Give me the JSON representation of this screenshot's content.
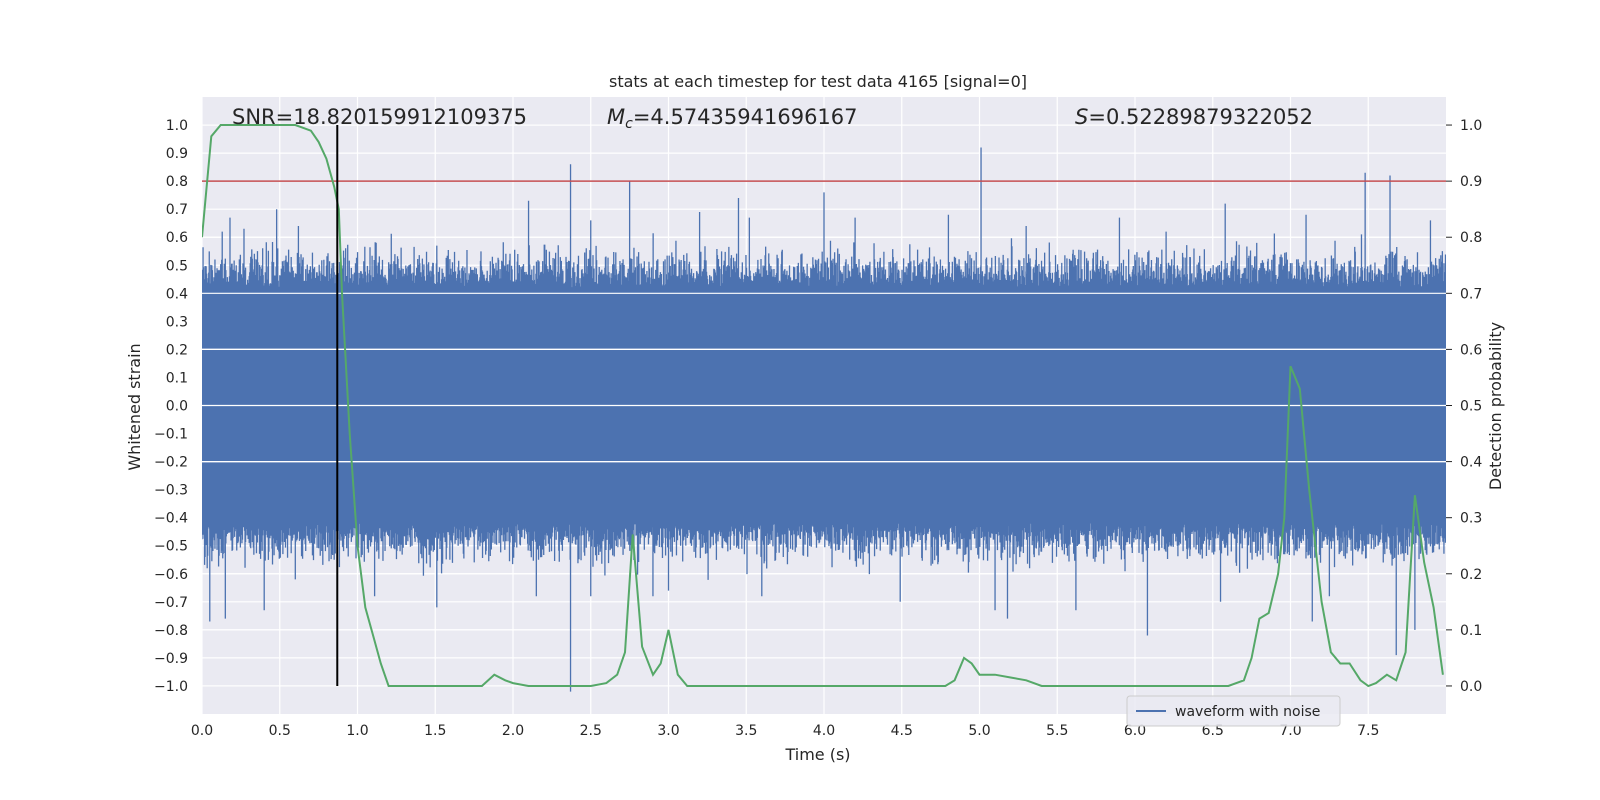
{
  "chart_data": {
    "type": "line",
    "title": "stats at each timestep for test data 4165 [signal=0]",
    "xlabel": "Time (s)",
    "ylabel": "Whitened strain",
    "y2label": "Detection probability",
    "xlim": [
      0.0,
      8.0
    ],
    "ylim": [
      -1.1,
      1.1
    ],
    "y2lim": [
      -0.05,
      1.05
    ],
    "x_ticks": [
      "0.0",
      "0.5",
      "1.0",
      "1.5",
      "2.0",
      "2.5",
      "3.0",
      "3.5",
      "4.0",
      "4.5",
      "5.0",
      "5.5",
      "6.0",
      "6.5",
      "7.0",
      "7.5"
    ],
    "y_ticks": [
      "1.0",
      "0.9",
      "0.8",
      "0.7",
      "0.6",
      "0.5",
      "0.4",
      "0.3",
      "0.2",
      "0.1",
      "0.0",
      "−0.1",
      "−0.2",
      "−0.3",
      "−0.4",
      "−0.5",
      "−0.6",
      "−0.7",
      "−0.8",
      "−0.9",
      "−1.0"
    ],
    "y2_ticks": [
      "1.0",
      "0.9",
      "0.8",
      "0.7",
      "0.6",
      "0.5",
      "0.4",
      "0.3",
      "0.2",
      "0.1",
      "0.0"
    ],
    "grid": true,
    "legend_placement": "lower-right",
    "annotations": {
      "snr": "SNR=18.820159912109375",
      "mc_symbol": "M",
      "mc_sub": "c",
      "mc_value": "=4.57435941696167",
      "s_symbol": "S",
      "s_value": "=0.52289879322052"
    },
    "threshold": {
      "y2": 0.9,
      "color": "#c44e52"
    },
    "vline": {
      "x": 0.87,
      "y_range": [
        -1.0,
        1.0
      ],
      "color": "#000000"
    },
    "series": [
      {
        "name": "waveform with noise",
        "color": "#4c72b0",
        "description_style": "dense noise",
        "envelope": {
          "core": 0.42,
          "typical": 0.55
        },
        "spikes_up": [
          [
            0.13,
            0.62
          ],
          [
            0.18,
            0.67
          ],
          [
            0.27,
            0.63
          ],
          [
            0.48,
            0.7
          ],
          [
            0.62,
            0.64
          ],
          [
            1.12,
            0.58
          ],
          [
            1.51,
            0.57
          ],
          [
            2.1,
            0.73
          ],
          [
            2.37,
            0.86
          ],
          [
            2.5,
            0.66
          ],
          [
            2.75,
            0.8
          ],
          [
            3.2,
            0.69
          ],
          [
            3.45,
            0.74
          ],
          [
            3.52,
            0.67
          ],
          [
            4.0,
            0.76
          ],
          [
            4.2,
            0.67
          ],
          [
            4.8,
            0.68
          ],
          [
            5.01,
            0.92
          ],
          [
            5.3,
            0.64
          ],
          [
            5.9,
            0.67
          ],
          [
            6.2,
            0.62
          ],
          [
            6.58,
            0.72
          ],
          [
            7.1,
            0.68
          ],
          [
            7.48,
            0.83
          ],
          [
            7.64,
            0.82
          ],
          [
            7.9,
            0.66
          ]
        ],
        "spikes_down": [
          [
            0.05,
            -0.77
          ],
          [
            0.15,
            -0.76
          ],
          [
            0.4,
            -0.73
          ],
          [
            0.6,
            -0.62
          ],
          [
            0.85,
            -0.55
          ],
          [
            1.11,
            -0.68
          ],
          [
            1.51,
            -0.72
          ],
          [
            2.15,
            -0.68
          ],
          [
            2.37,
            -1.02
          ],
          [
            2.5,
            -0.68
          ],
          [
            2.9,
            -0.68
          ],
          [
            3.0,
            -0.66
          ],
          [
            3.6,
            -0.68
          ],
          [
            4.49,
            -0.7
          ],
          [
            5.1,
            -0.73
          ],
          [
            5.18,
            -0.76
          ],
          [
            5.62,
            -0.73
          ],
          [
            6.08,
            -0.82
          ],
          [
            6.55,
            -0.7
          ],
          [
            7.14,
            -0.77
          ],
          [
            7.25,
            -0.68
          ],
          [
            7.68,
            -0.89
          ],
          [
            7.8,
            -0.8
          ]
        ]
      },
      {
        "name": "",
        "color": "#55a868",
        "axis": "y2",
        "x": [
          0.0,
          0.06,
          0.12,
          0.2,
          0.3,
          0.4,
          0.5,
          0.6,
          0.7,
          0.75,
          0.8,
          0.85,
          0.88,
          0.9,
          0.95,
          1.0,
          1.05,
          1.1,
          1.15,
          1.2,
          1.25,
          1.3,
          1.4,
          1.5,
          1.6,
          1.7,
          1.8,
          1.88,
          1.95,
          2.0,
          2.1,
          2.2,
          2.3,
          2.4,
          2.5,
          2.6,
          2.67,
          2.72,
          2.77,
          2.83,
          2.9,
          2.95,
          3.0,
          3.06,
          3.12,
          3.2,
          3.4,
          3.6,
          3.8,
          4.0,
          4.2,
          4.4,
          4.6,
          4.7,
          4.78,
          4.84,
          4.9,
          4.95,
          5.0,
          5.05,
          5.1,
          5.2,
          5.3,
          5.4,
          5.6,
          5.8,
          6.0,
          6.2,
          6.4,
          6.6,
          6.7,
          6.75,
          6.8,
          6.86,
          6.92,
          6.96,
          7.0,
          7.06,
          7.12,
          7.2,
          7.26,
          7.32,
          7.38,
          7.45,
          7.5,
          7.55,
          7.62,
          7.68,
          7.74,
          7.8,
          7.86,
          7.92,
          7.98
        ],
        "y": [
          0.8,
          0.98,
          1.0,
          1.0,
          1.0,
          1.0,
          1.0,
          1.0,
          0.99,
          0.97,
          0.94,
          0.89,
          0.85,
          0.7,
          0.45,
          0.25,
          0.14,
          0.09,
          0.04,
          0.0,
          0.0,
          0.0,
          0.0,
          0.0,
          0.0,
          0.0,
          0.0,
          0.02,
          0.01,
          0.005,
          0.0,
          0.0,
          0.0,
          0.0,
          0.0,
          0.005,
          0.02,
          0.06,
          0.27,
          0.07,
          0.02,
          0.04,
          0.1,
          0.02,
          0.0,
          0.0,
          0.0,
          0.0,
          0.0,
          0.0,
          0.0,
          0.0,
          0.0,
          0.0,
          0.0,
          0.01,
          0.05,
          0.04,
          0.02,
          0.02,
          0.02,
          0.015,
          0.01,
          0.0,
          0.0,
          0.0,
          0.0,
          0.0,
          0.0,
          0.0,
          0.01,
          0.05,
          0.12,
          0.13,
          0.2,
          0.3,
          0.57,
          0.53,
          0.35,
          0.15,
          0.06,
          0.04,
          0.04,
          0.01,
          0.0,
          0.005,
          0.02,
          0.01,
          0.06,
          0.34,
          0.22,
          0.14,
          0.02
        ]
      }
    ]
  }
}
